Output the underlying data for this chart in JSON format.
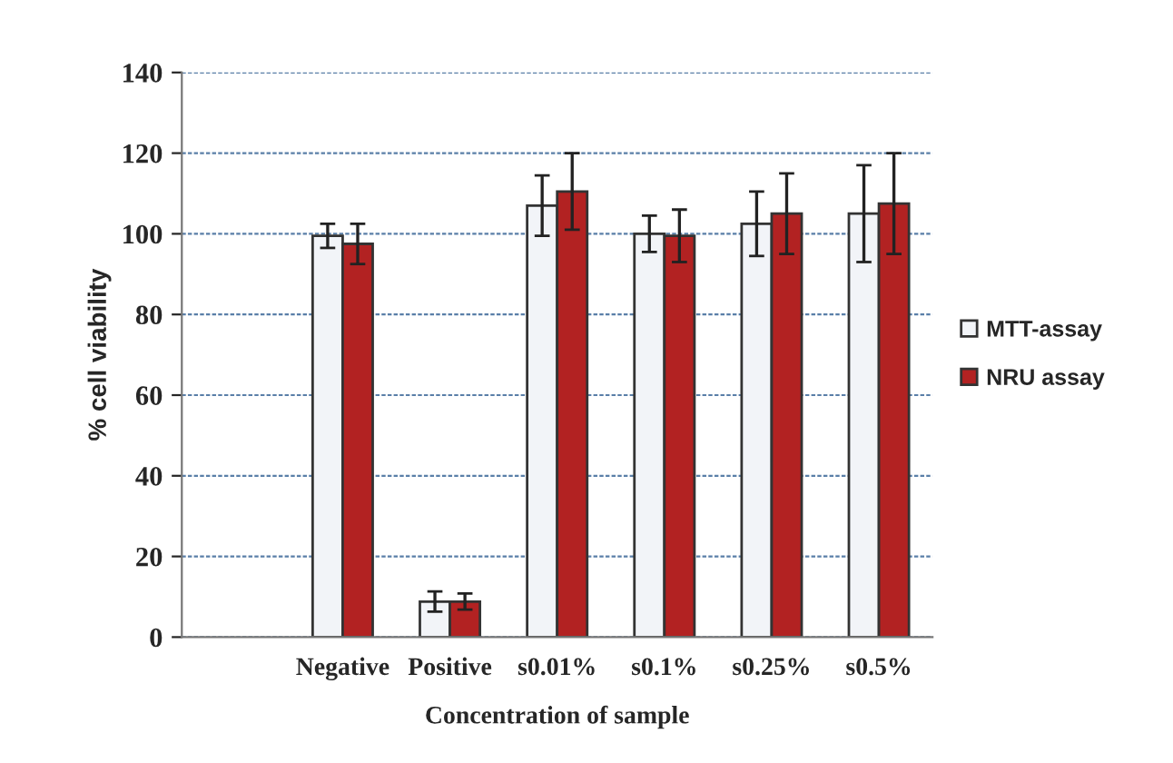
{
  "chart_data": {
    "type": "bar",
    "xlabel": "Concentration of sample",
    "ylabel": "% cell viability",
    "categories": [
      null,
      "Negative",
      "Positive",
      "s0.01%",
      "s0.1%",
      "s0.25%",
      "s0.5%"
    ],
    "series": [
      {
        "name": "MTT-assay",
        "color": "#f2f4f8",
        "values": [
          null,
          99.5,
          8.8,
          107,
          100,
          102.5,
          105
        ],
        "errors": [
          null,
          3,
          2.5,
          7.5,
          4.5,
          8,
          12
        ]
      },
      {
        "name": "NRU assay",
        "color": "#b22222",
        "values": [
          null,
          97.5,
          8.8,
          110.5,
          99.5,
          105,
          107.5
        ],
        "errors": [
          null,
          5,
          2,
          9.5,
          6.5,
          10,
          12.5
        ]
      }
    ],
    "ylim": [
      0,
      140
    ],
    "yticks": [
      0,
      20,
      40,
      60,
      80,
      100,
      120,
      140
    ],
    "grid": "y",
    "legend": "right"
  }
}
